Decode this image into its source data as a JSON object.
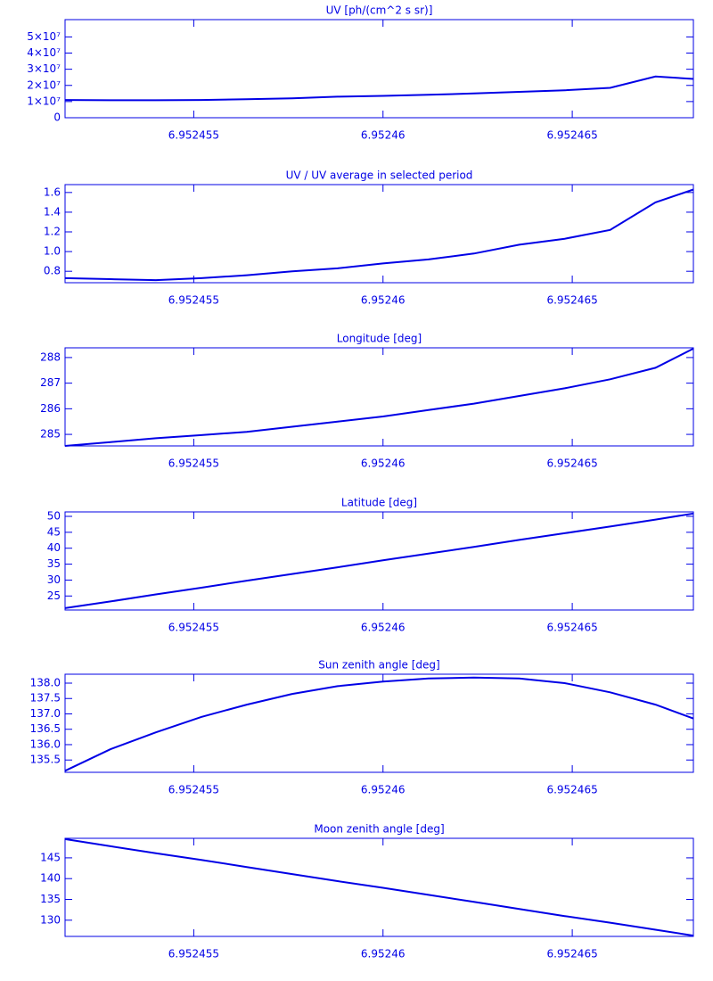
{
  "chart_data": [
    {
      "type": "line",
      "title": "UV [ph/(cm^2 s sr)]",
      "color": "#0000e6",
      "x": [
        6.9524516,
        6.9524528,
        6.952454,
        6.9524552,
        6.9524564,
        6.9524576,
        6.9524588,
        6.95246,
        6.9524612,
        6.9524624,
        6.9524636,
        6.9524648,
        6.952466,
        6.9524672,
        6.9524682
      ],
      "values": [
        11000000,
        10800000,
        10800000,
        11000000,
        11500000,
        12000000,
        13000000,
        13500000,
        14200000,
        15000000,
        16000000,
        17000000,
        18500000,
        25500000,
        24000000
      ],
      "xlim": [
        6.9524516,
        6.9524682
      ],
      "xticks": [
        6.952455,
        6.95246,
        6.952465
      ],
      "ylim": [
        0,
        60700000
      ],
      "yticks": [
        0,
        {
          "value": 10000000,
          "label": "1×10⁷"
        },
        {
          "value": 20000000,
          "label": "2×10⁷"
        },
        {
          "value": 30000000,
          "label": "3×10⁷"
        },
        {
          "value": 40000000,
          "label": "4×10⁷"
        },
        {
          "value": 50000000,
          "label": "5×10⁷"
        }
      ]
    },
    {
      "type": "line",
      "title": "UV / UV average in selected period",
      "color": "#0000e6",
      "x": [
        6.9524516,
        6.9524528,
        6.952454,
        6.9524552,
        6.9524564,
        6.9524576,
        6.9524588,
        6.95246,
        6.9524612,
        6.9524624,
        6.9524636,
        6.9524648,
        6.952466,
        6.9524672,
        6.9524682
      ],
      "values": [
        0.73,
        0.72,
        0.71,
        0.73,
        0.76,
        0.8,
        0.83,
        0.88,
        0.92,
        0.98,
        1.07,
        1.13,
        1.22,
        1.5,
        1.63
      ],
      "xlim": [
        6.9524516,
        6.9524682
      ],
      "xticks": [
        6.952455,
        6.95246,
        6.952465
      ],
      "ylim": [
        0.684,
        1.68
      ],
      "yticks": [
        0.8,
        {
          "value": 1,
          "label": "1.0"
        },
        1.2,
        1.4,
        1.6
      ]
    },
    {
      "type": "line",
      "title": "Longitude [deg]",
      "color": "#0000e6",
      "x": [
        6.9524516,
        6.9524528,
        6.952454,
        6.9524552,
        6.9524564,
        6.9524576,
        6.9524588,
        6.95246,
        6.9524612,
        6.9524624,
        6.9524636,
        6.9524648,
        6.952466,
        6.9524672,
        6.9524682
      ],
      "values": [
        284.55,
        284.7,
        284.85,
        284.97,
        285.1,
        285.3,
        285.5,
        285.7,
        285.95,
        286.2,
        286.5,
        286.8,
        287.15,
        287.6,
        288.35
      ],
      "xlim": [
        6.9524516,
        6.9524682
      ],
      "xticks": [
        6.952455,
        6.95246,
        6.952465
      ],
      "ylim": [
        284.55,
        288.38
      ],
      "yticks": [
        285,
        286,
        287,
        288
      ]
    },
    {
      "type": "line",
      "title": "Latitude [deg]",
      "color": "#0000e6",
      "x": [
        6.9524516,
        6.9524528,
        6.952454,
        6.9524552,
        6.9524564,
        6.9524576,
        6.9524588,
        6.95246,
        6.9524612,
        6.9524624,
        6.9524636,
        6.9524648,
        6.952466,
        6.9524672,
        6.9524682
      ],
      "values": [
        21.2,
        23.3,
        25.5,
        27.6,
        29.8,
        31.9,
        34,
        36.2,
        38.3,
        40.4,
        42.6,
        44.7,
        46.8,
        49,
        50.9
      ],
      "xlim": [
        6.9524516,
        6.9524682
      ],
      "xticks": [
        6.952455,
        6.95246,
        6.952465
      ],
      "ylim": [
        20.6,
        51.4
      ],
      "yticks": [
        25,
        30,
        35,
        40,
        45,
        50
      ]
    },
    {
      "type": "line",
      "title": "Sun zenith angle [deg]",
      "color": "#0000e6",
      "x": [
        6.9524516,
        6.9524528,
        6.952454,
        6.9524552,
        6.9524564,
        6.9524576,
        6.9524588,
        6.95246,
        6.9524612,
        6.9524624,
        6.9524636,
        6.9524648,
        6.952466,
        6.9524672,
        6.9524682
      ],
      "values": [
        135.15,
        135.85,
        136.4,
        136.9,
        137.3,
        137.65,
        137.9,
        138.05,
        138.15,
        138.18,
        138.15,
        138,
        137.7,
        137.3,
        136.85
      ],
      "xlim": [
        6.9524516,
        6.9524682
      ],
      "xticks": [
        6.952455,
        6.95246,
        6.952465
      ],
      "ylim": [
        135.1,
        138.29
      ],
      "yticks": [
        135.5,
        {
          "value": 136,
          "label": "136.0"
        },
        136.5,
        {
          "value": 137,
          "label": "137.0"
        },
        137.5,
        {
          "value": 138,
          "label": "138.0"
        }
      ]
    },
    {
      "type": "line",
      "title": "Moon zenith angle [deg]",
      "color": "#0000e6",
      "x": [
        6.9524516,
        6.9524528,
        6.952454,
        6.9524552,
        6.9524564,
        6.9524576,
        6.9524588,
        6.95246,
        6.9524612,
        6.9524624,
        6.9524636,
        6.9524648,
        6.952466,
        6.9524672,
        6.9524682
      ],
      "values": [
        149.5,
        147.8,
        146.1,
        144.5,
        142.8,
        141.1,
        139.4,
        137.8,
        136.1,
        134.4,
        132.7,
        131,
        129.4,
        127.7,
        126.3
      ],
      "xlim": [
        6.9524516,
        6.9524682
      ],
      "xticks": [
        6.952455,
        6.95246,
        6.952465
      ],
      "ylim": [
        126.1,
        149.7
      ],
      "yticks": [
        130,
        135,
        140,
        145
      ]
    }
  ]
}
